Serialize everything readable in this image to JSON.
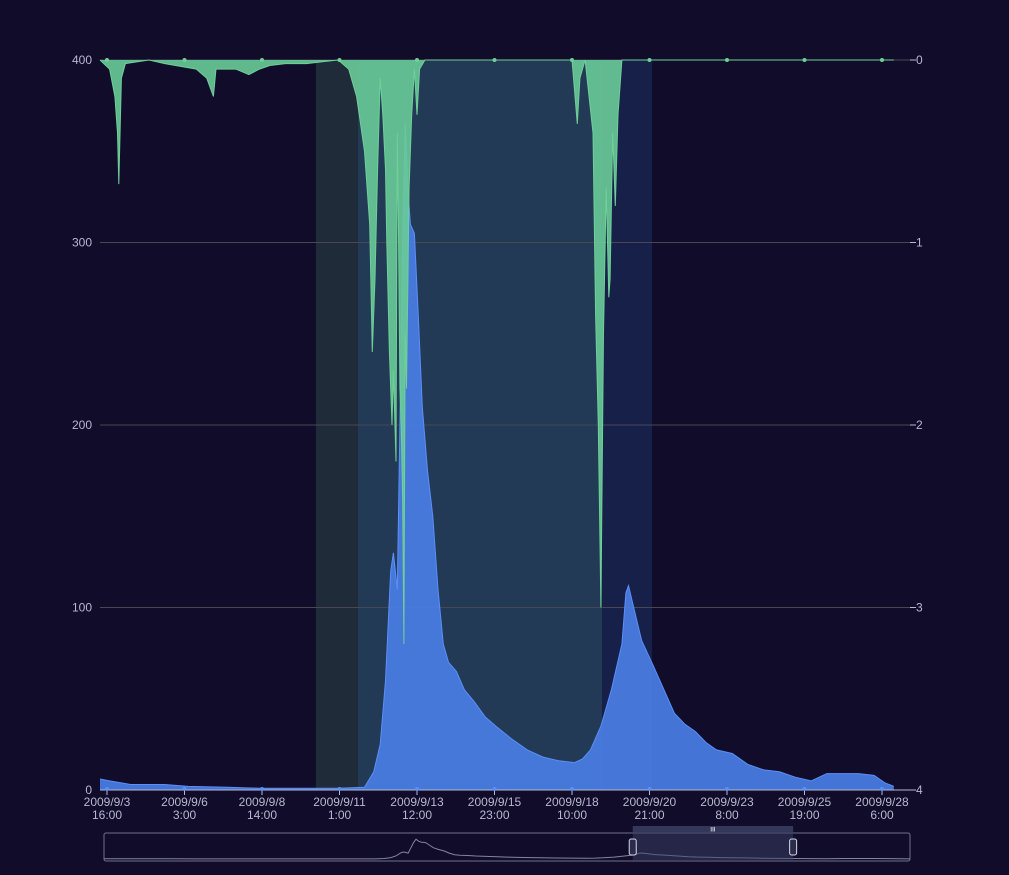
{
  "colors": {
    "background": "#100c2a",
    "flow": "#5b8ff9",
    "flow_fill": "#4a80e8",
    "rainfall": "#6fcf97",
    "rainfall_fill": "#69cb98",
    "grid": "#484753",
    "axis_text": "#b9b8ce",
    "mark_dark": "#1f2b38",
    "mark_teal": "#233a56",
    "mark_blue": "#172049",
    "slider_border": "#71708a",
    "slider_fill": "#3c4266",
    "slider_data": "#8584a0"
  },
  "chart_data": {
    "type": "area",
    "x_start": "2009/9/3 8:00",
    "x_end": "2009/9/28 15:00",
    "x_ticks": [
      {
        "date": "2009/9/3",
        "time": "16:00"
      },
      {
        "date": "2009/9/6",
        "time": "3:00"
      },
      {
        "date": "2009/9/8",
        "time": "14:00"
      },
      {
        "date": "2009/9/11",
        "time": "1:00"
      },
      {
        "date": "2009/9/13",
        "time": "12:00"
      },
      {
        "date": "2009/9/15",
        "time": "23:00"
      },
      {
        "date": "2009/9/18",
        "time": "10:00"
      },
      {
        "date": "2009/9/20",
        "time": "21:00"
      },
      {
        "date": "2009/9/23",
        "time": "8:00"
      },
      {
        "date": "2009/9/25",
        "time": "19:00"
      },
      {
        "date": "2009/9/28",
        "time": "6:00"
      }
    ],
    "y_left": {
      "min": 0,
      "max": 400,
      "ticks": [
        "0",
        "100",
        "200",
        "300",
        "400"
      ]
    },
    "y_right": {
      "min": 0,
      "max": 4,
      "inverse": true,
      "ticks": [
        "0",
        "1",
        "2",
        "3",
        "4"
      ]
    },
    "mark_areas": [
      {
        "from": "2009/9/10 7:00",
        "to": "2009/9/11 15:00",
        "color": "mark_dark"
      },
      {
        "from": "2009/9/11 15:00",
        "to": "2009/9/19 9:00",
        "color": "mark_teal"
      },
      {
        "from": "2009/9/19 9:00",
        "to": "2009/9/20 23:00",
        "color": "mark_blue"
      }
    ],
    "series": [
      {
        "axis": "left",
        "color": "flow",
        "points": [
          [
            "2009/9/3 8:00",
            6
          ],
          [
            "2009/9/3 18:00",
            5
          ],
          [
            "2009/9/4 10:00",
            3
          ],
          [
            "2009/9/5 12:00",
            3
          ],
          [
            "2009/9/6 6:00",
            2
          ],
          [
            "2009/9/7 12:00",
            1.5
          ],
          [
            "2009/9/8 12:00",
            1
          ],
          [
            "2009/9/10 0:00",
            1
          ],
          [
            "2009/9/11 0:00",
            1
          ],
          [
            "2009/9/11 20:00",
            1.5
          ],
          [
            "2009/9/12 3:00",
            10
          ],
          [
            "2009/9/12 8:00",
            25
          ],
          [
            "2009/9/12 12:00",
            60
          ],
          [
            "2009/9/12 16:00",
            120
          ],
          [
            "2009/9/12 18:00",
            130
          ],
          [
            "2009/9/12 21:00",
            110
          ],
          [
            "2009/9/12 23:00",
            200
          ],
          [
            "2009/9/13 1:00",
            300
          ],
          [
            "2009/9/13 3:00",
            366
          ],
          [
            "2009/9/13 5:00",
            330
          ],
          [
            "2009/9/13 7:00",
            310
          ],
          [
            "2009/9/13 10:00",
            305
          ],
          [
            "2009/9/13 13:00",
            260
          ],
          [
            "2009/9/13 16:00",
            210
          ],
          [
            "2009/9/13 20:00",
            175
          ],
          [
            "2009/9/14 0:00",
            150
          ],
          [
            "2009/9/14 4:00",
            110
          ],
          [
            "2009/9/14 8:00",
            80
          ],
          [
            "2009/9/14 12:00",
            70
          ],
          [
            "2009/9/14 18:00",
            65
          ],
          [
            "2009/9/15 0:00",
            55
          ],
          [
            "2009/9/15 8:00",
            48
          ],
          [
            "2009/9/15 16:00",
            40
          ],
          [
            "2009/9/16 0:00",
            35
          ],
          [
            "2009/9/16 12:00",
            28
          ],
          [
            "2009/9/17 0:00",
            22
          ],
          [
            "2009/9/17 12:00",
            18
          ],
          [
            "2009/9/18 0:00",
            16
          ],
          [
            "2009/9/18 12:00",
            15
          ],
          [
            "2009/9/18 18:00",
            17
          ],
          [
            "2009/9/19 0:00",
            22
          ],
          [
            "2009/9/19 8:00",
            35
          ],
          [
            "2009/9/19 16:00",
            55
          ],
          [
            "2009/9/20 0:00",
            80
          ],
          [
            "2009/9/20 3:00",
            108
          ],
          [
            "2009/9/20 5:00",
            112
          ],
          [
            "2009/9/20 9:00",
            100
          ],
          [
            "2009/9/20 15:00",
            82
          ],
          [
            "2009/9/21 0:00",
            68
          ],
          [
            "2009/9/21 8:00",
            55
          ],
          [
            "2009/9/21 16:00",
            42
          ],
          [
            "2009/9/22 0:00",
            36
          ],
          [
            "2009/9/22 8:00",
            32
          ],
          [
            "2009/9/22 16:00",
            26
          ],
          [
            "2009/9/23 0:00",
            22
          ],
          [
            "2009/9/23 12:00",
            20
          ],
          [
            "2009/9/24 0:00",
            14
          ],
          [
            "2009/9/24 12:00",
            11
          ],
          [
            "2009/9/25 0:00",
            10
          ],
          [
            "2009/9/25 12:00",
            7
          ],
          [
            "2009/9/26 0:00",
            5
          ],
          [
            "2009/9/26 12:00",
            9
          ],
          [
            "2009/9/27 0:00",
            9
          ],
          [
            "2009/9/27 12:00",
            9
          ],
          [
            "2009/9/28 0:00",
            8
          ],
          [
            "2009/9/28 8:00",
            4
          ],
          [
            "2009/9/28 15:00",
            2
          ]
        ]
      },
      {
        "axis": "right",
        "color": "rainfall",
        "points": [
          [
            "2009/9/3 8:00",
            0
          ],
          [
            "2009/9/3 18:00",
            0.05
          ],
          [
            "2009/9/3 22:00",
            0.2
          ],
          [
            "2009/9/4 0:00",
            0.4
          ],
          [
            "2009/9/4 1:00",
            0.68
          ],
          [
            "2009/9/4 3:00",
            0.1
          ],
          [
            "2009/9/4 6:00",
            0.02
          ],
          [
            "2009/9/5 0:00",
            0
          ],
          [
            "2009/9/5 12:00",
            0.02
          ],
          [
            "2009/9/6 12:00",
            0.05
          ],
          [
            "2009/9/6 20:00",
            0.1
          ],
          [
            "2009/9/7 1:00",
            0.2
          ],
          [
            "2009/9/7 3:00",
            0.05
          ],
          [
            "2009/9/7 18:00",
            0.05
          ],
          [
            "2009/9/8 4:00",
            0.08
          ],
          [
            "2009/9/8 12:00",
            0.05
          ],
          [
            "2009/9/8 20:00",
            0.03
          ],
          [
            "2009/9/9 8:00",
            0.02
          ],
          [
            "2009/9/10 0:00",
            0.02
          ],
          [
            "2009/9/10 12:00",
            0.01
          ],
          [
            "2009/9/11 0:00",
            0
          ],
          [
            "2009/9/11 8:00",
            0.05
          ],
          [
            "2009/9/11 14:00",
            0.2
          ],
          [
            "2009/9/11 20:00",
            0.5
          ],
          [
            "2009/9/12 0:00",
            0.9
          ],
          [
            "2009/9/12 2:00",
            1.6
          ],
          [
            "2009/9/12 4:00",
            1.2
          ],
          [
            "2009/9/12 6:00",
            0.6
          ],
          [
            "2009/9/12 8:00",
            0.1
          ],
          [
            "2009/9/12 10:00",
            0.3
          ],
          [
            "2009/9/12 12:00",
            0.6
          ],
          [
            "2009/9/12 13:00",
            1.0
          ],
          [
            "2009/9/12 15:00",
            1.6
          ],
          [
            "2009/9/12 16:00",
            1.8
          ],
          [
            "2009/9/12 17:00",
            2.0
          ],
          [
            "2009/9/12 18:00",
            1.7
          ],
          [
            "2009/9/12 20:00",
            2.2
          ],
          [
            "2009/9/12 21:00",
            0.4
          ],
          [
            "2009/9/12 22:00",
            1.0
          ],
          [
            "2009/9/12 23:00",
            1.8
          ],
          [
            "2009/9/13 0:00",
            2.0
          ],
          [
            "2009/9/13 1:00",
            2.4
          ],
          [
            "2009/9/13 2:00",
            3.2
          ],
          [
            "2009/9/13 3:00",
            1.5
          ],
          [
            "2009/9/13 4:00",
            1.8
          ],
          [
            "2009/9/13 6:00",
            0.7
          ],
          [
            "2009/9/13 8:00",
            0.3
          ],
          [
            "2009/9/13 10:00",
            0.05
          ],
          [
            "2009/9/13 12:00",
            0.3
          ],
          [
            "2009/9/13 14:00",
            0.05
          ],
          [
            "2009/9/13 18:00",
            0
          ],
          [
            "2009/9/18 10:00",
            0
          ],
          [
            "2009/9/18 14:00",
            0.35
          ],
          [
            "2009/9/18 16:00",
            0.1
          ],
          [
            "2009/9/18 20:00",
            0
          ],
          [
            "2009/9/19 2:00",
            0.4
          ],
          [
            "2009/9/19 4:00",
            1.4
          ],
          [
            "2009/9/19 6:00",
            2.0
          ],
          [
            "2009/9/19 8:00",
            3.0
          ],
          [
            "2009/9/19 10:00",
            1.5
          ],
          [
            "2009/9/19 12:00",
            0.7
          ],
          [
            "2009/9/19 14:00",
            1.3
          ],
          [
            "2009/9/19 15:00",
            1.2
          ],
          [
            "2009/9/19 17:00",
            0.4
          ],
          [
            "2009/9/19 19:00",
            0.8
          ],
          [
            "2009/9/19 21:00",
            0.3
          ],
          [
            "2009/9/20 0:00",
            0
          ],
          [
            "2009/9/20 21:00",
            0
          ],
          [
            "2009/9/28 15:00",
            0
          ]
        ]
      }
    ]
  },
  "data_zoom": {
    "start_percent": 65.6,
    "end_percent": 85.5,
    "handle_glyph": "III"
  }
}
